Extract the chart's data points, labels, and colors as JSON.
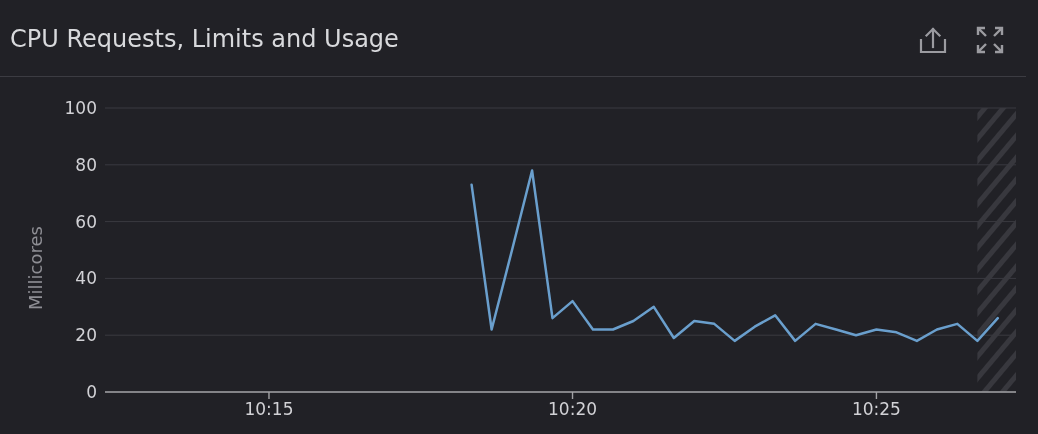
{
  "chart_data": {
    "type": "line",
    "title": "CPU Requests, Limits and Usage",
    "ylabel": "Millicores",
    "x": [
      10.3056,
      10.3111,
      10.3167,
      10.3222,
      10.3278,
      10.3333,
      10.3389,
      10.3444,
      10.35,
      10.3556,
      10.3611,
      10.3667,
      10.3722,
      10.3778,
      10.3833,
      10.3889,
      10.3944,
      10.4,
      10.4056,
      10.4111,
      10.4167,
      10.4222,
      10.4278,
      10.4333,
      10.4389,
      10.4444,
      10.45
    ],
    "series": [
      {
        "color": "#6a9fcd",
        "values": [
          73,
          22,
          50,
          78,
          26,
          32,
          22,
          22,
          25,
          30,
          19,
          25,
          24,
          18,
          23,
          27,
          18,
          24,
          22,
          20,
          22,
          21,
          18,
          22,
          24,
          18,
          26
        ]
      }
    ],
    "xlim": [
      10.205,
      10.455
    ],
    "xticks": [
      {
        "value": 10.25,
        "label": "10:15"
      },
      {
        "value": 10.3333,
        "label": "10:20"
      },
      {
        "value": 10.4167,
        "label": "10:25"
      }
    ],
    "ylim": [
      0,
      100
    ],
    "yticks": [
      0,
      20,
      40,
      60,
      80,
      100
    ],
    "grid": "y",
    "marker": "none",
    "line_style": "solid",
    "bands": [
      {
        "axis": "x",
        "from": 10.4444,
        "to": 10.455,
        "color": "#38383e"
      }
    ]
  }
}
